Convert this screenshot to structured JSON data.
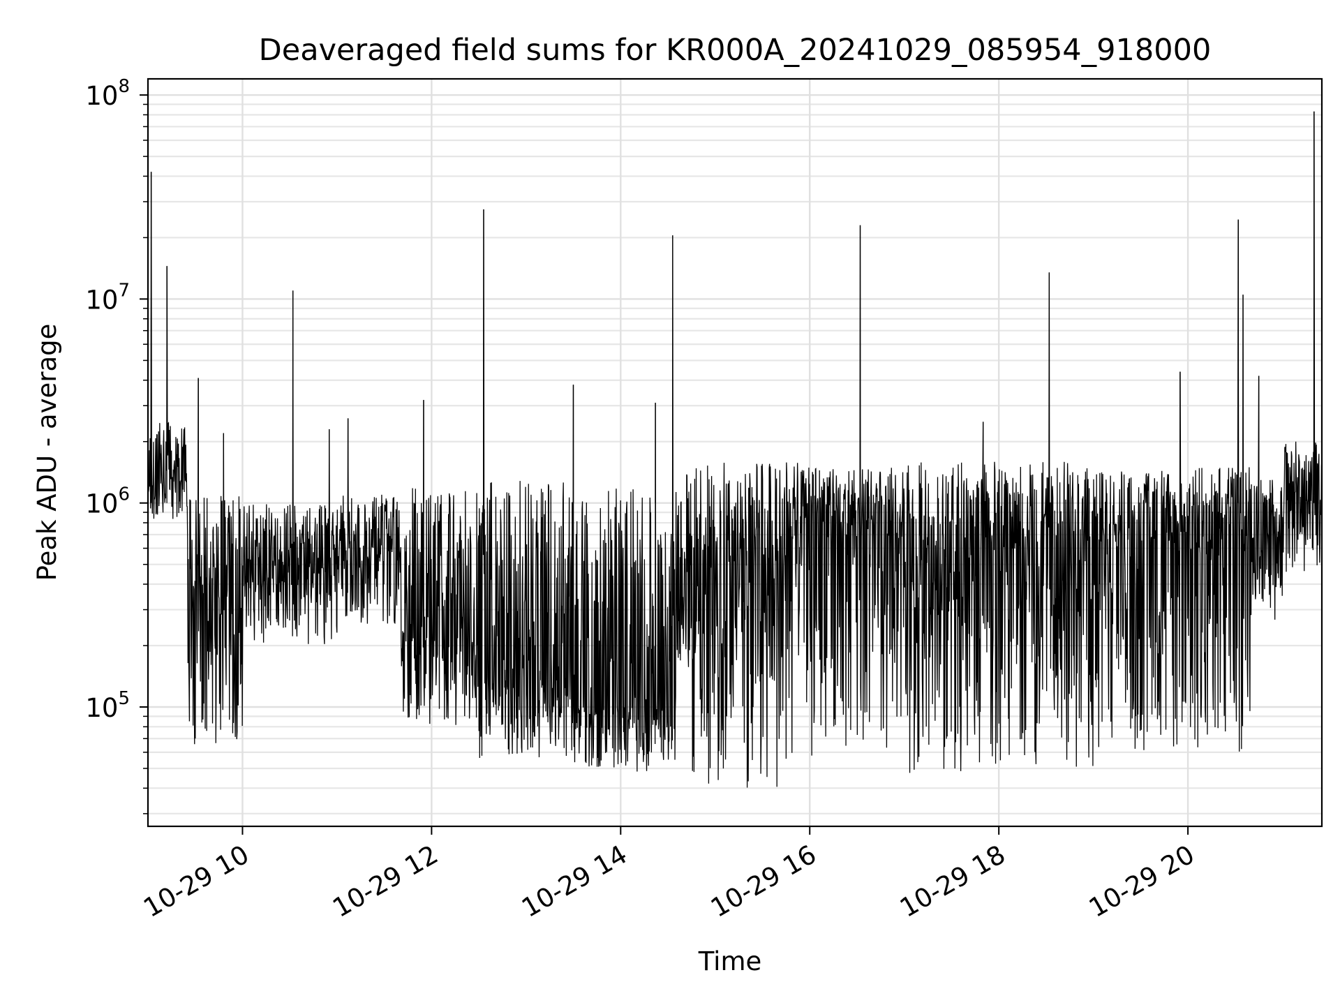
{
  "chart_data": {
    "type": "line",
    "title": "Deaveraged field sums for KR000A_20241029_085954_918000",
    "xlabel": "Time",
    "ylabel": "Peak ADU - average",
    "yscale": "log",
    "ylim": [
      26000,
      120000000
    ],
    "xlim": [
      "2024-10-29 09:00",
      "2024-10-29 21:25"
    ],
    "grid": true,
    "x_ticks": [
      {
        "value": "2024-10-29 10:00",
        "label": "10-29 10"
      },
      {
        "value": "2024-10-29 12:00",
        "label": "10-29 12"
      },
      {
        "value": "2024-10-29 14:00",
        "label": "10-29 14"
      },
      {
        "value": "2024-10-29 16:00",
        "label": "10-29 16"
      },
      {
        "value": "2024-10-29 18:00",
        "label": "10-29 18"
      },
      {
        "value": "2024-10-29 20:00",
        "label": "10-29 20"
      }
    ],
    "y_ticks": [
      {
        "value": 100000,
        "base": "10",
        "exp": "5"
      },
      {
        "value": 1000000,
        "base": "10",
        "exp": "6"
      },
      {
        "value": 10000000,
        "base": "10",
        "exp": "7"
      },
      {
        "value": 100000000,
        "base": "10",
        "exp": "8"
      }
    ],
    "series": [
      {
        "color": "#000000",
        "segments": [
          {
            "start": "2024-10-29 09:00",
            "end": "2024-10-29 09:25",
            "median": 1300000,
            "low": 800000,
            "high": 2500000
          },
          {
            "start": "2024-10-29 09:25",
            "end": "2024-10-29 10:00",
            "median": 350000,
            "low": 65000,
            "high": 1100000
          },
          {
            "start": "2024-10-29 10:00",
            "end": "2024-10-29 11:00",
            "median": 480000,
            "low": 200000,
            "high": 1000000
          },
          {
            "start": "2024-10-29 11:00",
            "end": "2024-10-29 11:40",
            "median": 600000,
            "low": 250000,
            "high": 1100000
          },
          {
            "start": "2024-10-29 11:40",
            "end": "2024-10-29 12:30",
            "median": 220000,
            "low": 80000,
            "high": 1200000
          },
          {
            "start": "2024-10-29 12:30",
            "end": "2024-10-29 13:30",
            "median": 140000,
            "low": 55000,
            "high": 1300000
          },
          {
            "start": "2024-10-29 13:30",
            "end": "2024-10-29 14:35",
            "median": 100000,
            "low": 48000,
            "high": 1200000
          },
          {
            "start": "2024-10-29 14:35",
            "end": "2024-10-29 14:45",
            "median": 350000,
            "low": 150000,
            "high": 1400000
          },
          {
            "start": "2024-10-29 14:45",
            "end": "2024-10-29 15:55",
            "median": 500000,
            "low": 40000,
            "high": 1600000
          },
          {
            "start": "2024-10-29 15:55",
            "end": "2024-10-29 16:20",
            "median": 900000,
            "low": 55000,
            "high": 1500000
          },
          {
            "start": "2024-10-29 16:20",
            "end": "2024-10-29 17:00",
            "median": 700000,
            "low": 60000,
            "high": 1500000
          },
          {
            "start": "2024-10-29 17:00",
            "end": "2024-10-29 17:40",
            "median": 400000,
            "low": 40000,
            "high": 1600000
          },
          {
            "start": "2024-10-29 17:40",
            "end": "2024-10-29 19:00",
            "median": 600000,
            "low": 50000,
            "high": 1600000
          },
          {
            "start": "2024-10-29 19:00",
            "end": "2024-10-29 20:40",
            "median": 700000,
            "low": 60000,
            "high": 1500000
          },
          {
            "start": "2024-10-29 20:40",
            "end": "2024-10-29 21:00",
            "median": 750000,
            "low": 250000,
            "high": 1300000
          },
          {
            "start": "2024-10-29 21:00",
            "end": "2024-10-29 21:25",
            "median": 1050000,
            "low": 450000,
            "high": 2000000
          }
        ],
        "spikes": [
          {
            "x": "2024-10-29 09:02",
            "y": 42000000
          },
          {
            "x": "2024-10-29 09:12",
            "y": 14500000
          },
          {
            "x": "2024-10-29 09:32",
            "y": 4100000
          },
          {
            "x": "2024-10-29 09:48",
            "y": 2200000
          },
          {
            "x": "2024-10-29 10:32",
            "y": 11000000
          },
          {
            "x": "2024-10-29 10:55",
            "y": 2300000
          },
          {
            "x": "2024-10-29 11:07",
            "y": 2600000
          },
          {
            "x": "2024-10-29 11:55",
            "y": 3200000
          },
          {
            "x": "2024-10-29 12:33",
            "y": 27500000
          },
          {
            "x": "2024-10-29 13:30",
            "y": 3800000
          },
          {
            "x": "2024-10-29 14:22",
            "y": 3100000
          },
          {
            "x": "2024-10-29 14:33",
            "y": 20500000
          },
          {
            "x": "2024-10-29 16:32",
            "y": 23000000
          },
          {
            "x": "2024-10-29 17:50",
            "y": 2500000
          },
          {
            "x": "2024-10-29 18:32",
            "y": 13500000
          },
          {
            "x": "2024-10-29 19:55",
            "y": 4400000
          },
          {
            "x": "2024-10-29 20:32",
            "y": 24500000
          },
          {
            "x": "2024-10-29 20:35",
            "y": 10500000
          },
          {
            "x": "2024-10-29 20:45",
            "y": 4200000
          },
          {
            "x": "2024-10-29 21:20",
            "y": 83000000
          }
        ]
      }
    ]
  }
}
